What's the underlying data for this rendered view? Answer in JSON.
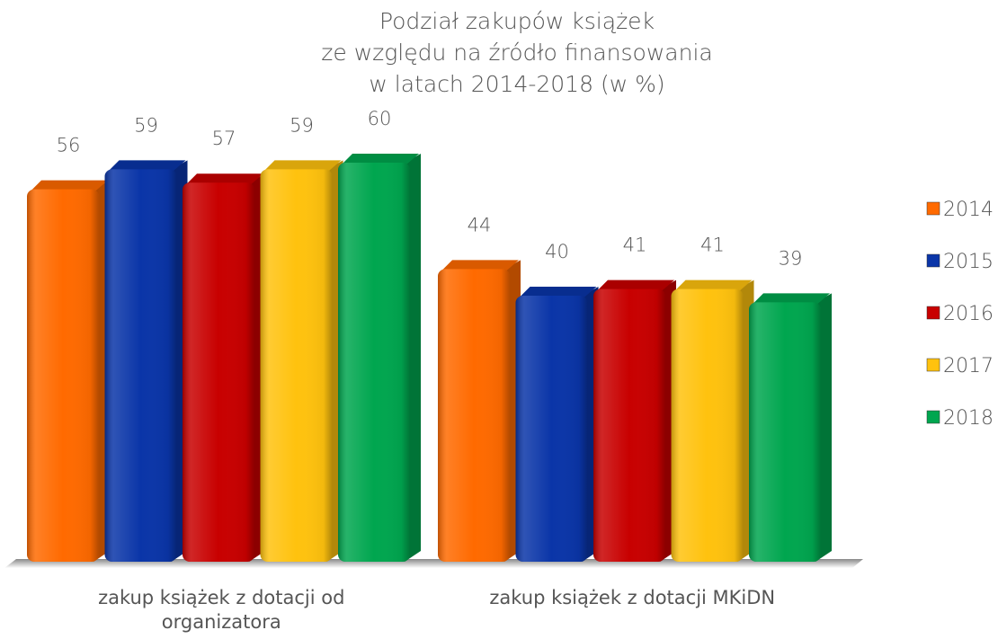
{
  "chart_data": {
    "type": "bar3d",
    "title": [
      "Podział zakupów książek",
      "ze względu na źródło finansowania",
      "w latach 2014-2018  (w %)"
    ],
    "categories": [
      "zakup książek z dotacji od organizatora",
      "zakup książek z dotacji MKiDN"
    ],
    "series": [
      {
        "name": "2014",
        "color": "#ff6a00",
        "values": [
          56,
          44
        ]
      },
      {
        "name": "2015",
        "color": "#0a35a8",
        "values": [
          59,
          40
        ]
      },
      {
        "name": "2016",
        "color": "#c80000",
        "values": [
          57,
          41
        ]
      },
      {
        "name": "2017",
        "color": "#ffc20e",
        "values": [
          59,
          41
        ]
      },
      {
        "name": "2018",
        "color": "#00a64f",
        "values": [
          60,
          39
        ]
      }
    ]
  }
}
